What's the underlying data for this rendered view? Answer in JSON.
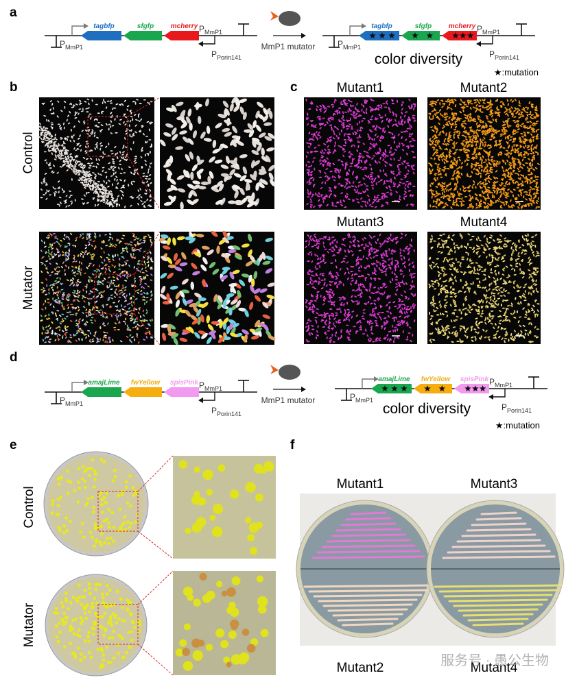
{
  "panel_letters": [
    "a",
    "b",
    "c",
    "d",
    "e",
    "f"
  ],
  "constructs": {
    "promoter_letter": "P",
    "mmp1": "MmP1",
    "porin": "Porin141",
    "mutator_label": "MmP1 mutator",
    "result": "color diversity",
    "mutation_legend": "★:mutation"
  },
  "panel_a": {
    "genes": [
      {
        "name": "tagbfp",
        "color": "#1f6fc0"
      },
      {
        "name": "sfgfp",
        "color": "#1aa64e"
      },
      {
        "name": "mcherry",
        "color": "#e8191d"
      }
    ]
  },
  "panel_b": {
    "rows": [
      "Control",
      "Mutator"
    ]
  },
  "panel_c": {
    "titles": [
      "Mutant1",
      "Mutant2",
      "Mutant3",
      "Mutant4"
    ]
  },
  "panel_d": {
    "genes": [
      {
        "name": "amajLime",
        "color": "#1aa64e"
      },
      {
        "name": "fwYellow",
        "color": "#f5ad10"
      },
      {
        "name": "spisPink",
        "color": "#f29af0"
      }
    ]
  },
  "panel_e": {
    "rows": [
      "Control",
      "Mutator"
    ]
  },
  "panel_f": {
    "titles": [
      "Mutant1",
      "Mutant3",
      "Mutant2",
      "Mutant4"
    ]
  },
  "watermark": "服务号 · 愚公生物"
}
